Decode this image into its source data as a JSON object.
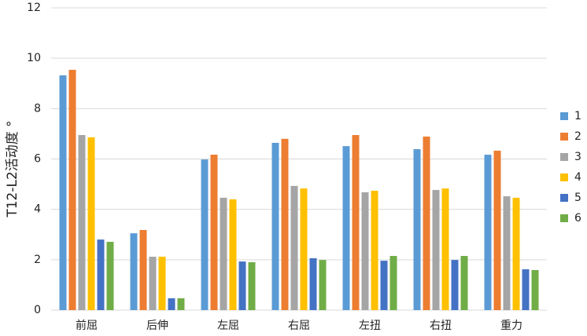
{
  "chart_data": {
    "type": "bar",
    "y_label": "T12-L2活动度 °",
    "categories": [
      "前屈",
      "后伸",
      "左屈",
      "右屈",
      "左扭",
      "右扭",
      "重力"
    ],
    "series": [
      {
        "name": "1",
        "color": "#5b9bd5",
        "values": [
          9.32,
          3.05,
          5.98,
          6.64,
          6.51,
          6.39,
          6.17
        ]
      },
      {
        "name": "2",
        "color": "#ed7d31",
        "values": [
          9.54,
          3.18,
          6.17,
          6.8,
          6.95,
          6.89,
          6.33
        ]
      },
      {
        "name": "3",
        "color": "#a5a5a5",
        "values": [
          6.95,
          2.12,
          4.46,
          4.93,
          4.68,
          4.77,
          4.52
        ]
      },
      {
        "name": "4",
        "color": "#ffc000",
        "values": [
          6.86,
          2.12,
          4.4,
          4.83,
          4.74,
          4.83,
          4.46
        ]
      },
      {
        "name": "5",
        "color": "#4472c4",
        "values": [
          2.8,
          0.47,
          1.93,
          2.06,
          1.96,
          1.99,
          1.62
        ]
      },
      {
        "name": "6",
        "color": "#70ad47",
        "values": [
          2.71,
          0.47,
          1.9,
          1.99,
          2.15,
          2.15,
          1.59
        ]
      }
    ],
    "ylim": [
      0,
      12
    ],
    "yticks": [
      0,
      2,
      4,
      6,
      8,
      10,
      12
    ],
    "grid": true,
    "legend": "right"
  }
}
